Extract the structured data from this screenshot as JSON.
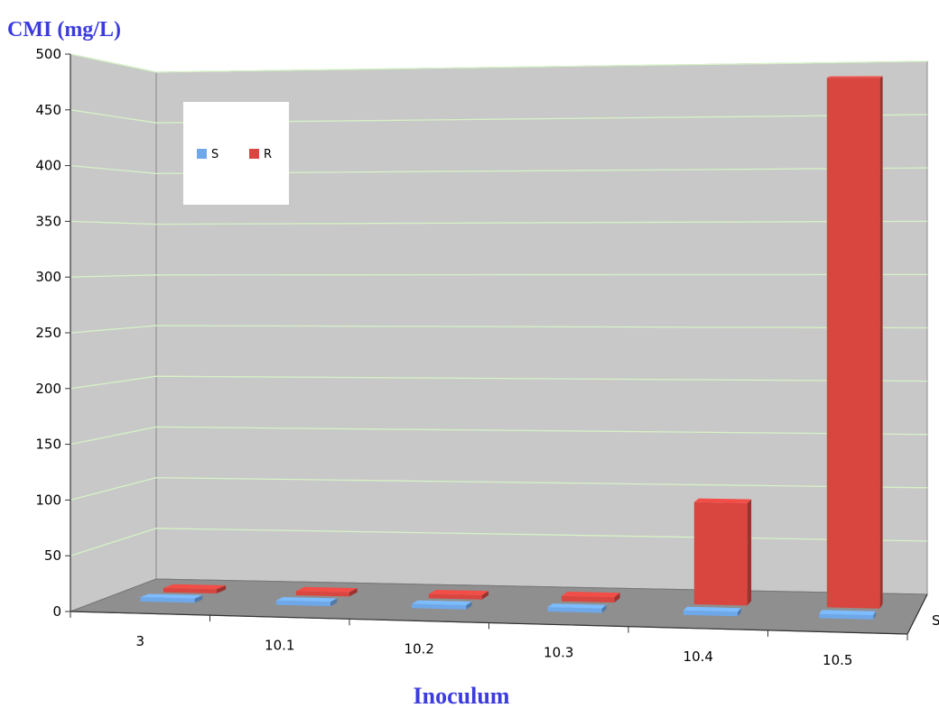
{
  "chart_data": {
    "type": "bar",
    "ylabel": "CMI (mg/L)",
    "xlabel": "Inoculum",
    "categories": [
      "3",
      "10.1",
      "10.2",
      "10.3",
      "10.4",
      "10.5"
    ],
    "series": [
      {
        "name": "S",
        "values": [
          0,
          0,
          0,
          0,
          0,
          0
        ],
        "color": "#6fa8e8"
      },
      {
        "name": "R",
        "values": [
          1,
          2,
          2,
          5,
          95,
          490
        ],
        "color": "#d9453f"
      }
    ],
    "ylim": [
      0,
      500
    ],
    "yticks": [
      0,
      50,
      100,
      150,
      200,
      250,
      300,
      350,
      400,
      450,
      500
    ],
    "depth_axis_label": "S",
    "legend": "top-left",
    "grid": true,
    "style": "3d",
    "colors": {
      "wall": "#c8c8c8",
      "floor": "#8f8f8f",
      "grid": "#d6f2c6",
      "title": "#3b3bdf"
    }
  }
}
